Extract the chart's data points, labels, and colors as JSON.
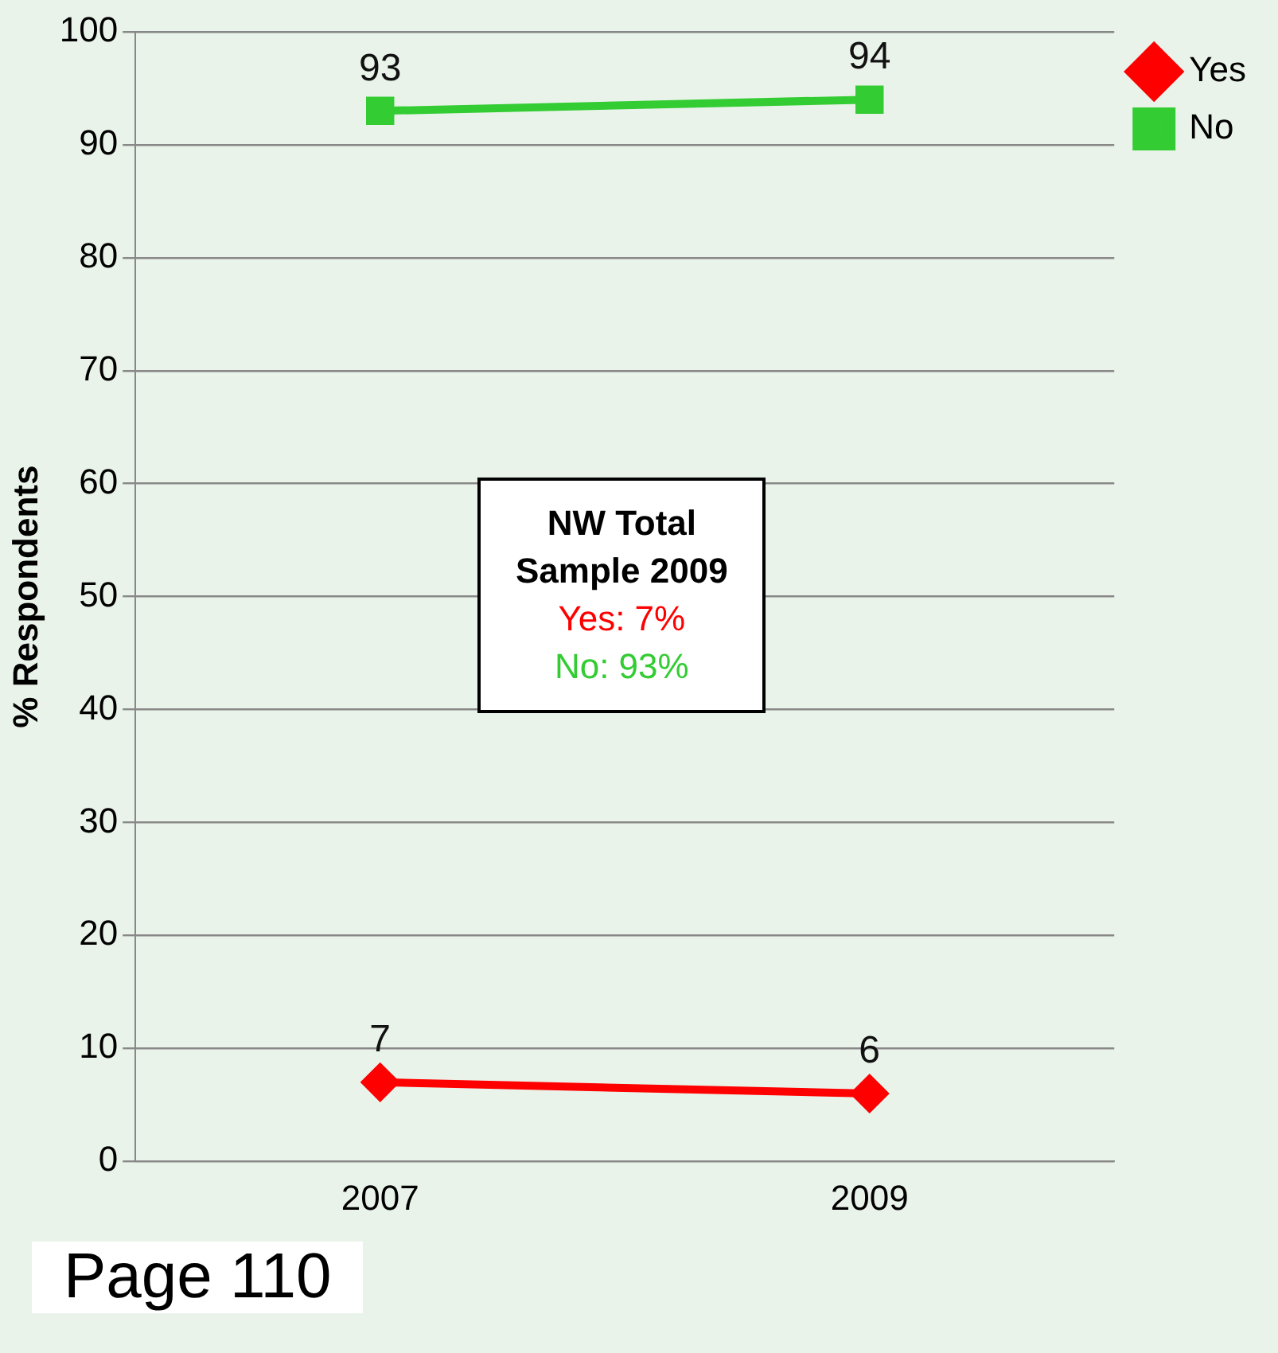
{
  "chart_data": {
    "type": "line",
    "categories": [
      "2007",
      "2009"
    ],
    "series": [
      {
        "name": "Yes",
        "color": "#ff0000",
        "values": [
          7,
          6
        ],
        "marker": "diamond"
      },
      {
        "name": "No",
        "color": "#33cc33",
        "values": [
          93,
          94
        ],
        "marker": "square"
      }
    ],
    "ylabel": "% Respondents",
    "ylim": [
      0,
      100
    ],
    "yticks": [
      0,
      10,
      20,
      30,
      40,
      50,
      60,
      70,
      80,
      90,
      100
    ],
    "grid": "y",
    "legend": "top right",
    "data_labels": true,
    "annotations": [
      "NW Total",
      "Sample 2009",
      "Yes: 7%",
      "No: 93%",
      "Page 110"
    ]
  }
}
